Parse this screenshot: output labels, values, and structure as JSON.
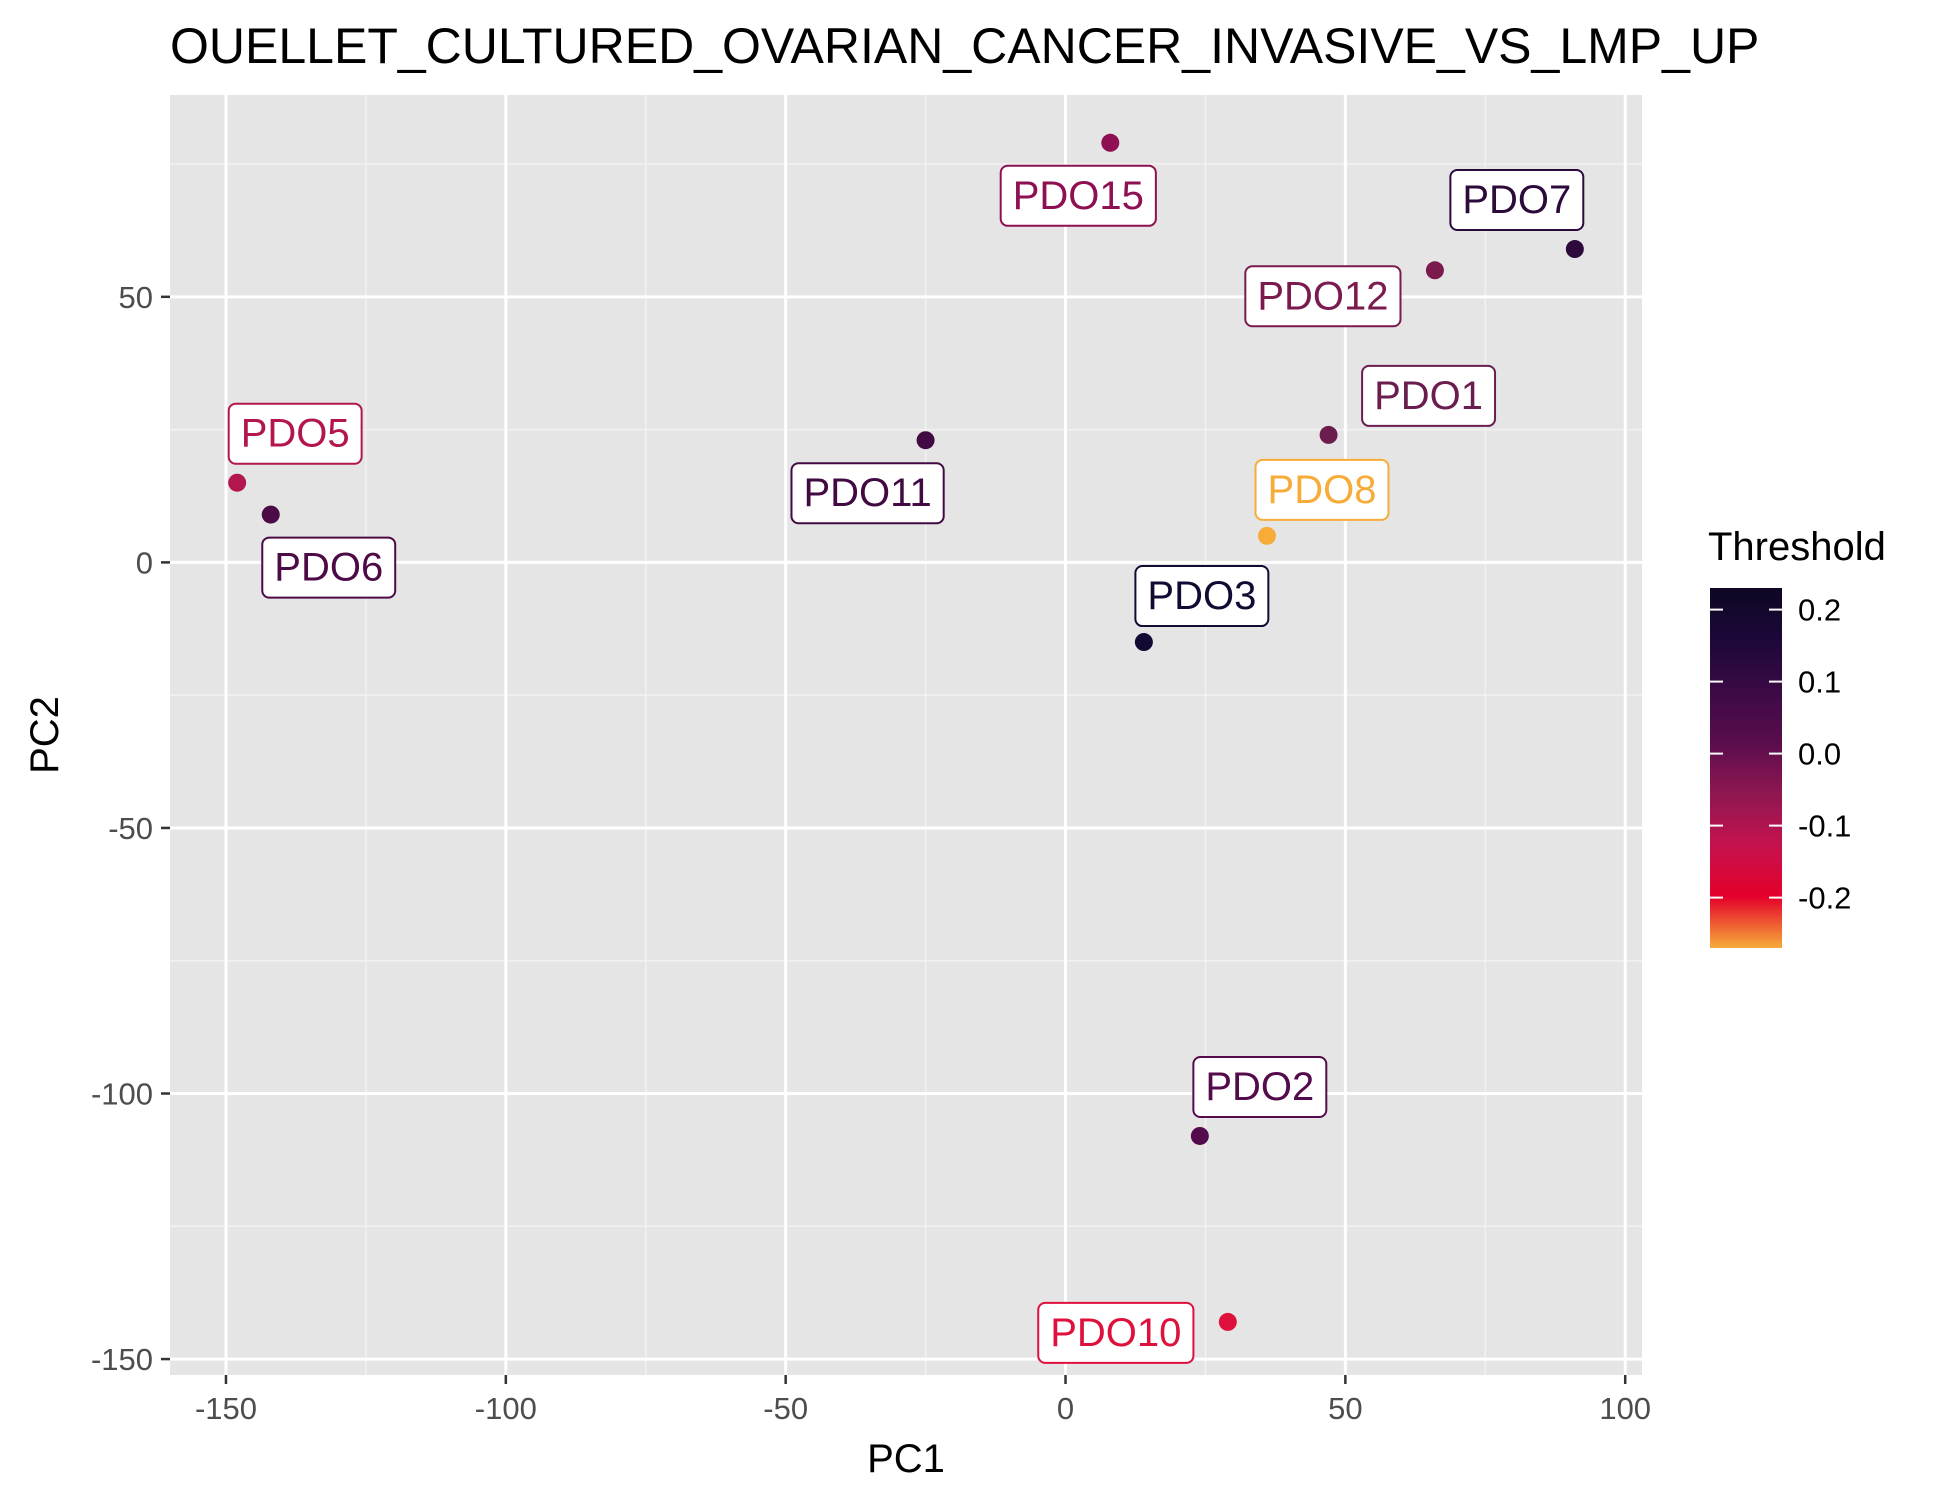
{
  "chart_data": {
    "type": "scatter",
    "title": "OUELLET_CULTURED_OVARIAN_CANCER_INVASIVE_VS_LMP_UP",
    "xlabel": "PC1",
    "ylabel": "PC2",
    "xlim": [
      -160,
      103
    ],
    "ylim": [
      -153,
      88
    ],
    "x_ticks": [
      -150,
      -100,
      -50,
      0,
      50,
      100
    ],
    "x_tick_labels": [
      "-150",
      "-100",
      "-50",
      "0",
      "50",
      "100"
    ],
    "y_ticks": [
      -150,
      -100,
      -50,
      0,
      50
    ],
    "y_tick_labels": [
      "-150",
      "-100",
      "-50",
      "0",
      "50"
    ],
    "grid": true,
    "panel_background": "#e5e5e5",
    "grid_color": "#ffffff",
    "points": [
      {
        "label": "PDO15",
        "x": 8,
        "y": 79,
        "threshold": -0.13,
        "color": "#8e1052"
      },
      {
        "label": "PDO7",
        "x": 91,
        "y": 59,
        "threshold": 0.2,
        "color": "#2c0a3b"
      },
      {
        "label": "PDO12",
        "x": 66,
        "y": 55,
        "threshold": -0.1,
        "color": "#7a1a4d"
      },
      {
        "label": "PDO1",
        "x": 47,
        "y": 24,
        "threshold": -0.08,
        "color": "#6b1d4f"
      },
      {
        "label": "PDO5",
        "x": -148,
        "y": 15,
        "threshold": -0.17,
        "color": "#b3164f"
      },
      {
        "label": "PDO6",
        "x": -142,
        "y": 9,
        "threshold": 0.08,
        "color": "#4c0a46"
      },
      {
        "label": "PDO11",
        "x": -25,
        "y": 23,
        "threshold": 0.1,
        "color": "#420a42"
      },
      {
        "label": "PDO8",
        "x": 36,
        "y": 5,
        "threshold": -0.26,
        "color": "#f7ac3a"
      },
      {
        "label": "PDO3",
        "x": 14,
        "y": -15,
        "threshold": 0.22,
        "color": "#120a33"
      },
      {
        "label": "PDO2",
        "x": 24,
        "y": -108,
        "threshold": 0.04,
        "color": "#540b4c"
      },
      {
        "label": "PDO10",
        "x": 29,
        "y": -143,
        "threshold": -0.23,
        "color": "#e0103c"
      }
    ],
    "legend": {
      "title": "Threshold",
      "position": "right",
      "range": [
        -0.27,
        0.23
      ],
      "ticks": [
        0.2,
        0.1,
        0.0,
        -0.1,
        -0.2
      ],
      "tick_labels": [
        "0.2",
        "0.1",
        "0.0",
        "-0.1",
        "-0.2"
      ],
      "colors": [
        "#f7ac3a",
        "#e4002a",
        "#c5124f",
        "#8e1751",
        "#5a0d4d",
        "#3b0a45",
        "#1c0838",
        "#0e0723"
      ]
    }
  }
}
